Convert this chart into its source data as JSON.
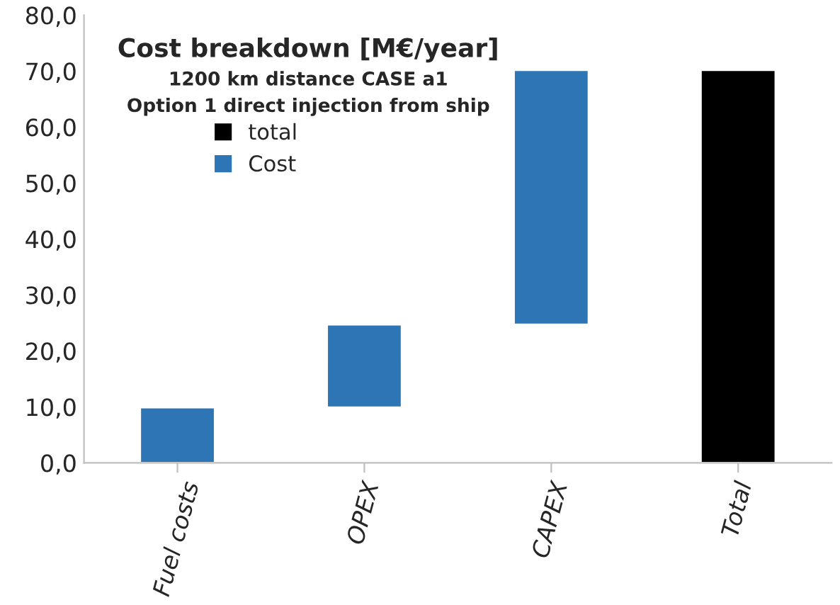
{
  "chart_data": {
    "type": "bar",
    "title": "Cost breakdown [M€/year]",
    "subtitle": "1200 km distance CASE a1\nOption 1 direct injection from ship",
    "categories": [
      "Fuel costs",
      "OPEX",
      "CAPEX",
      "Total"
    ],
    "series": [
      {
        "name": "total",
        "color": "#000000",
        "values": [
          null,
          null,
          null,
          70.2
        ],
        "base": [
          null,
          null,
          null,
          0
        ]
      },
      {
        "name": "Cost",
        "color": "#2e75b6",
        "values": [
          9.9,
          14.8,
          45.5,
          null
        ],
        "base": [
          0,
          9.9,
          24.7,
          null
        ]
      }
    ],
    "ylim": [
      0,
      80
    ],
    "yticks": [
      {
        "value": 0,
        "label": "0,0"
      },
      {
        "value": 10,
        "label": "10,0"
      },
      {
        "value": 20,
        "label": "20,0"
      },
      {
        "value": 30,
        "label": "30,0"
      },
      {
        "value": 40,
        "label": "40,0"
      },
      {
        "value": 50,
        "label": "50,0"
      },
      {
        "value": 60,
        "label": "60,0"
      },
      {
        "value": 70,
        "label": "70,0"
      },
      {
        "value": 80,
        "label": "80,0"
      }
    ],
    "grid": false,
    "legend": "left"
  }
}
